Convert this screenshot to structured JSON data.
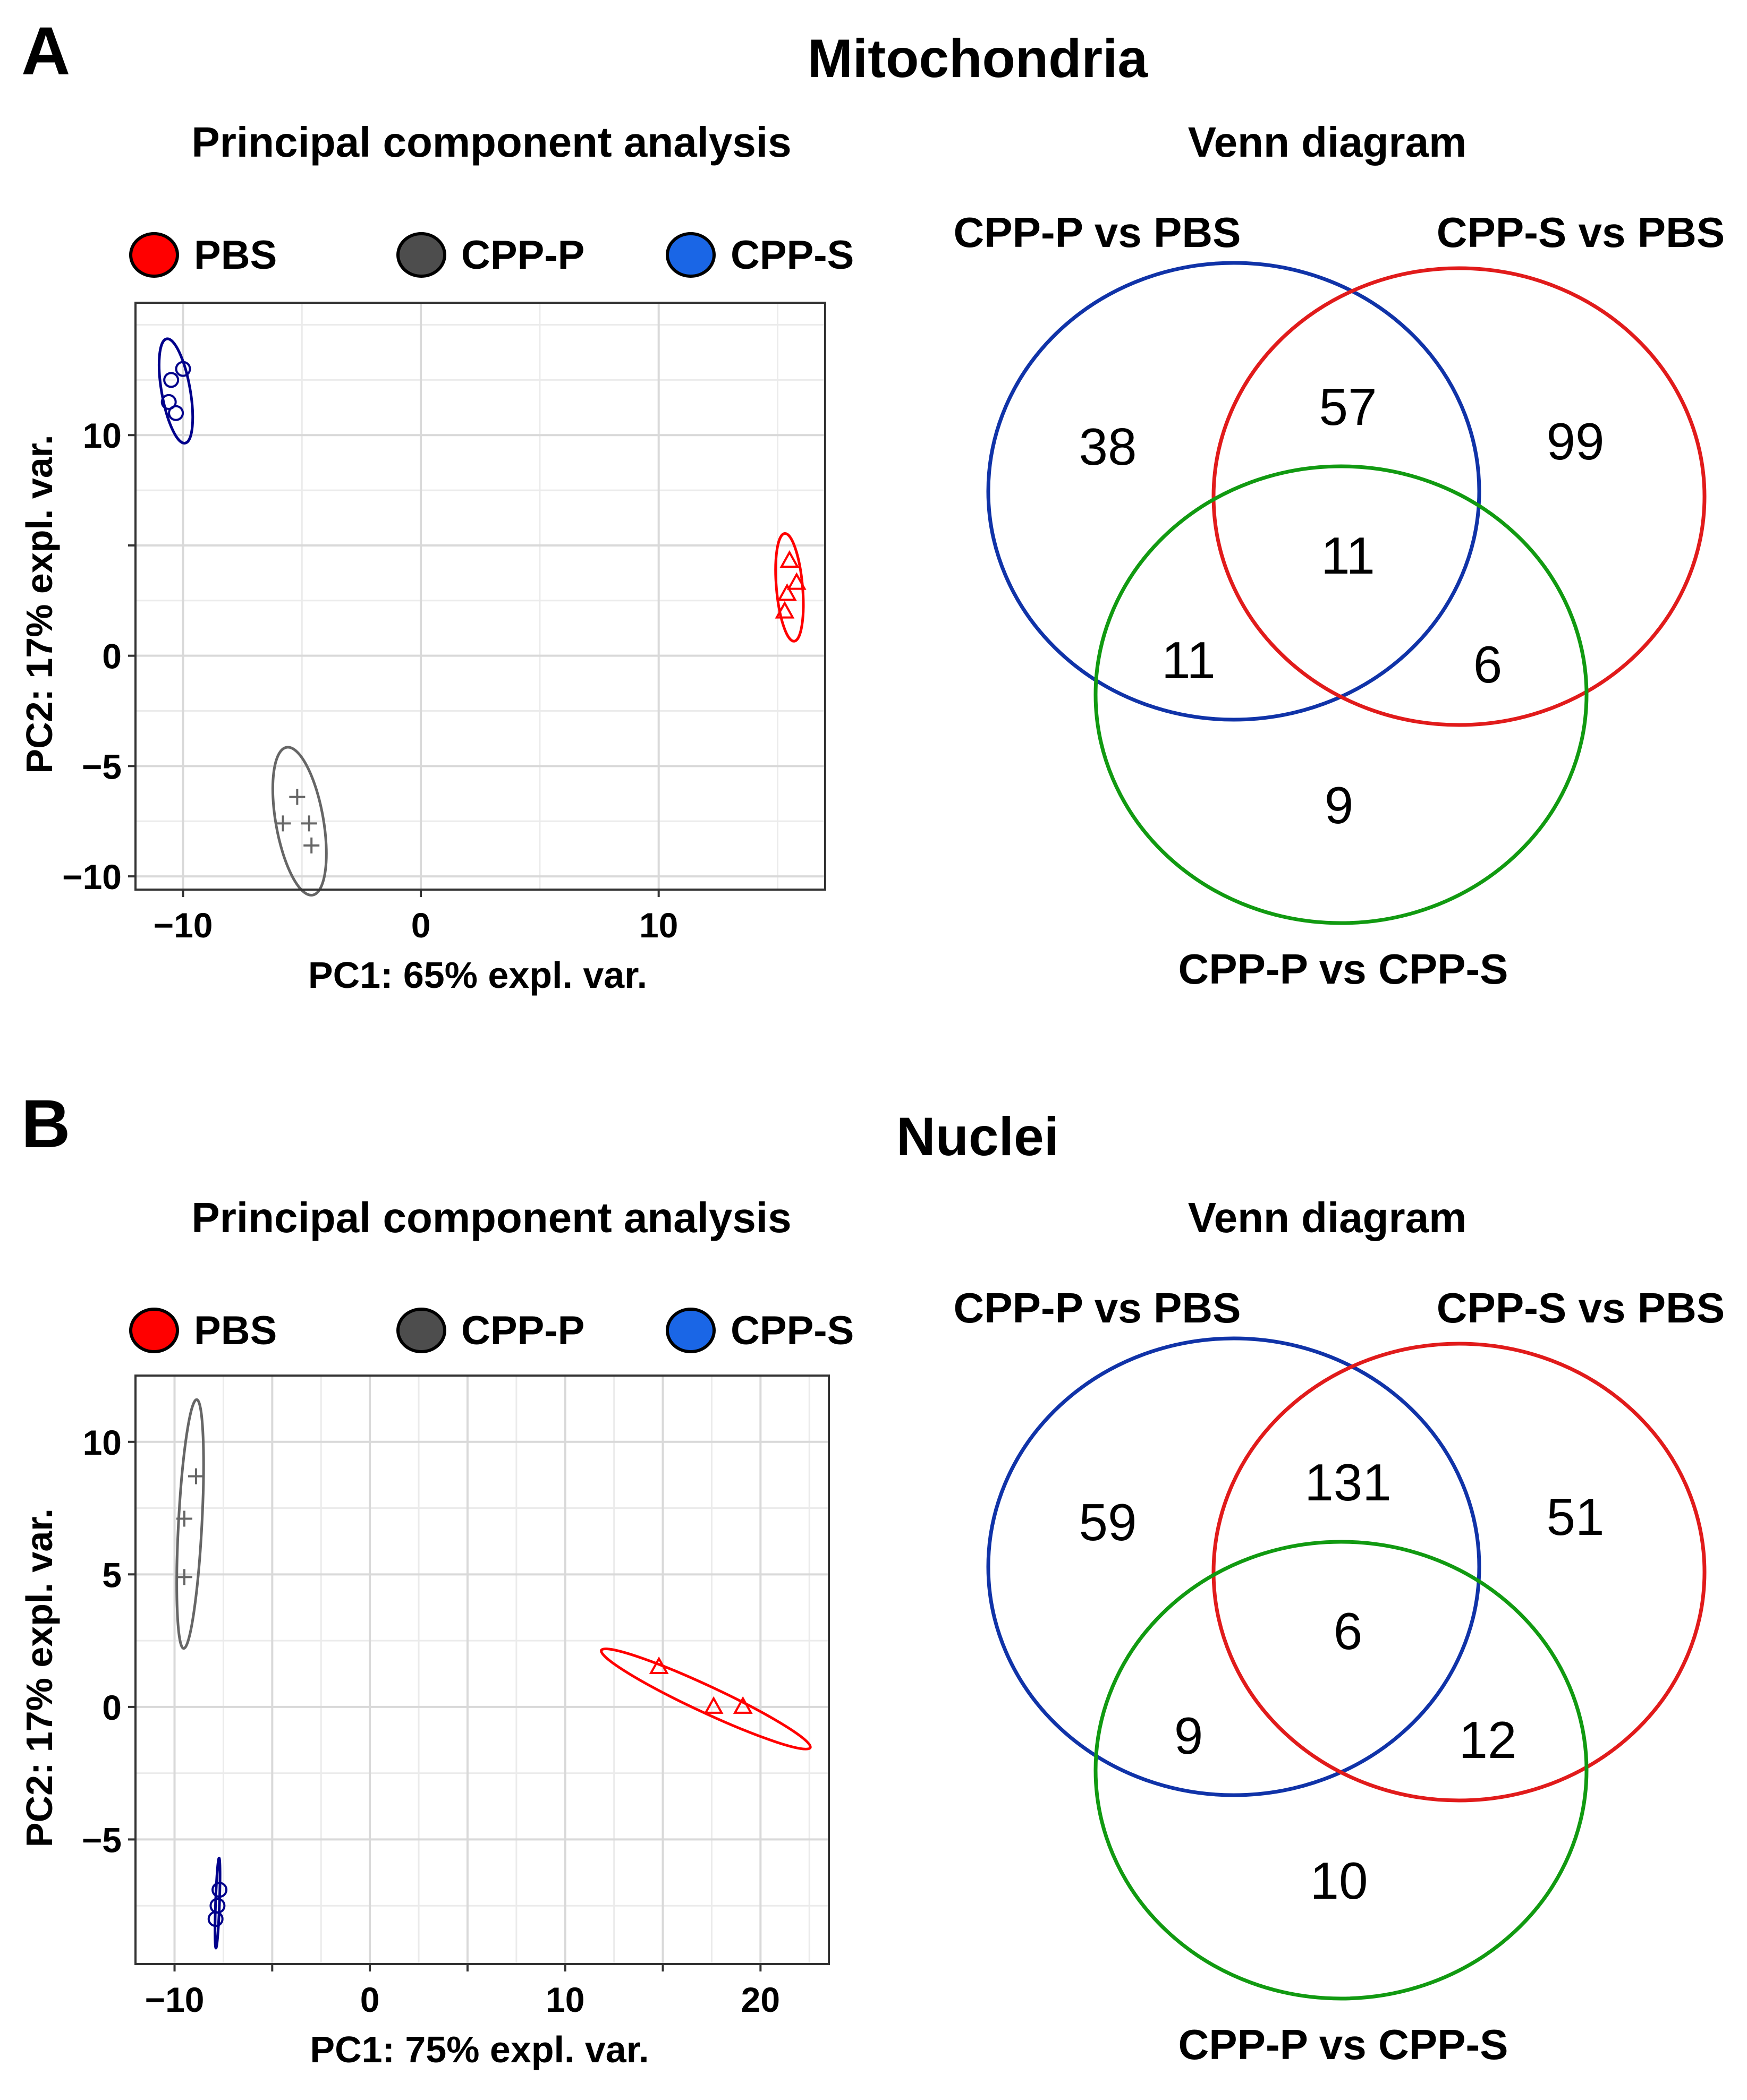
{
  "panels": [
    {
      "letter": "A",
      "title": "Mitochondria",
      "pca_title": "Principal component analysis",
      "venn_title": "Venn diagram",
      "legend": [
        {
          "label": "PBS",
          "color": "#ff0000"
        },
        {
          "label": "CPP-P",
          "color": "#4d4d4d"
        },
        {
          "label": "CPP-S",
          "color": "#1a66e6"
        }
      ]
    },
    {
      "letter": "B",
      "title": "Nuclei",
      "pca_title": "Principal component analysis",
      "venn_title": "Venn diagram",
      "legend": [
        {
          "label": "PBS",
          "color": "#ff0000"
        },
        {
          "label": "CPP-P",
          "color": "#4d4d4d"
        },
        {
          "label": "CPP-S",
          "color": "#1a66e6"
        }
      ]
    }
  ],
  "chart_data": [
    {
      "type": "scatter",
      "title": "Principal component analysis",
      "xlabel": "PC1: 65% expl. var.",
      "ylabel": "PC2: 17% expl. var.",
      "xlim": [
        -12,
        17
      ],
      "ylim": [
        -10.6,
        16
      ],
      "xticks": [
        -10,
        0,
        10
      ],
      "yticks": [
        -10,
        -5,
        0,
        5,
        10
      ],
      "tick_labels": {
        "x": [
          "−10",
          "0",
          "10"
        ],
        "y": [
          "−10",
          "−5",
          "0",
          "",
          "10"
        ]
      },
      "grid": true,
      "legend_position": "top",
      "series": [
        {
          "name": "CPP-S",
          "marker": "circle",
          "color": "#00008b",
          "points": [
            [
              -10.0,
              13.0
            ],
            [
              -10.5,
              12.5
            ],
            [
              -10.6,
              11.5
            ],
            [
              -10.3,
              11.0
            ]
          ],
          "ellipse": {
            "center": [
              -10.3,
              12.0
            ],
            "rx": 0.6,
            "ry": 2.4,
            "angle_deg": -10
          }
        },
        {
          "name": "PBS",
          "marker": "triangle",
          "color": "#ff0000",
          "points": [
            [
              15.5,
              4.3
            ],
            [
              15.8,
              3.3
            ],
            [
              15.4,
              2.8
            ],
            [
              15.3,
              2.0
            ]
          ],
          "ellipse": {
            "center": [
              15.5,
              3.1
            ],
            "rx": 0.55,
            "ry": 2.45,
            "angle_deg": -5
          }
        },
        {
          "name": "CPP-P",
          "marker": "plus",
          "color": "#666666",
          "points": [
            [
              -5.2,
              -6.4
            ],
            [
              -5.8,
              -7.6
            ],
            [
              -4.7,
              -7.6
            ],
            [
              -4.6,
              -8.6
            ]
          ],
          "ellipse": {
            "center": [
              -5.1,
              -7.5
            ],
            "rx": 1.0,
            "ry": 3.4,
            "angle_deg": -10
          }
        }
      ]
    },
    {
      "type": "venn",
      "title": "Venn diagram",
      "sets": [
        {
          "name": "CPP-P vs PBS",
          "color": "#1033a8"
        },
        {
          "name": "CPP-S vs PBS",
          "color": "#e11b1b"
        },
        {
          "name": "CPP-P vs CPP-S",
          "color": "#119a11"
        }
      ],
      "regions": {
        "only_1": "38",
        "only_2": "99",
        "only_3": "9",
        "1_2": "57",
        "1_3": "11",
        "2_3": "6",
        "1_2_3": "11"
      }
    },
    {
      "type": "scatter",
      "title": "Principal component analysis",
      "xlabel": "PC1: 75% expl. var.",
      "ylabel": "PC2: 17% expl. var.",
      "xlim": [
        -12,
        23.5
      ],
      "ylim": [
        -9.7,
        12.5
      ],
      "xticks": [
        -10,
        -5,
        0,
        5,
        10,
        15,
        20
      ],
      "yticks": [
        -5,
        0,
        5,
        10
      ],
      "tick_labels": {
        "x": [
          "−10",
          "",
          "0",
          "",
          "10",
          "",
          "20"
        ],
        "y": [
          "−5",
          "0",
          "5",
          "10"
        ]
      },
      "grid": true,
      "legend_position": "top",
      "series": [
        {
          "name": "CPP-P",
          "marker": "plus",
          "color": "#666666",
          "points": [
            [
              -8.9,
              8.7
            ],
            [
              -9.5,
              7.1
            ],
            [
              -9.5,
              4.9
            ]
          ],
          "ellipse": {
            "center": [
              -9.2,
              6.9
            ],
            "rx": 0.6,
            "ry": 4.7,
            "angle_deg": 3
          }
        },
        {
          "name": "PBS",
          "marker": "triangle",
          "color": "#ff0000",
          "points": [
            [
              14.8,
              1.5
            ],
            [
              17.6,
              0.0
            ],
            [
              19.1,
              0.0
            ]
          ],
          "ellipse": {
            "center": [
              17.2,
              0.3
            ],
            "rx": 5.9,
            "ry": 0.5,
            "angle_deg": 25
          }
        },
        {
          "name": "CPP-S",
          "marker": "circle",
          "color": "#00008b",
          "points": [
            [
              -7.7,
              -6.9
            ],
            [
              -7.8,
              -7.5
            ],
            [
              -7.9,
              -8.0
            ]
          ],
          "ellipse": {
            "center": [
              -7.8,
              -7.4
            ],
            "rx": 0.1,
            "ry": 1.7,
            "angle_deg": 2
          }
        }
      ]
    },
    {
      "type": "venn",
      "title": "Venn diagram",
      "sets": [
        {
          "name": "CPP-P vs PBS",
          "color": "#1033a8"
        },
        {
          "name": "CPP-S vs PBS",
          "color": "#e11b1b"
        },
        {
          "name": "CPP-P vs CPP-S",
          "color": "#119a11"
        }
      ],
      "regions": {
        "only_1": "59",
        "only_2": "51",
        "only_3": "10",
        "1_2": "131",
        "1_3": "9",
        "2_3": "12",
        "1_2_3": "6"
      }
    }
  ]
}
